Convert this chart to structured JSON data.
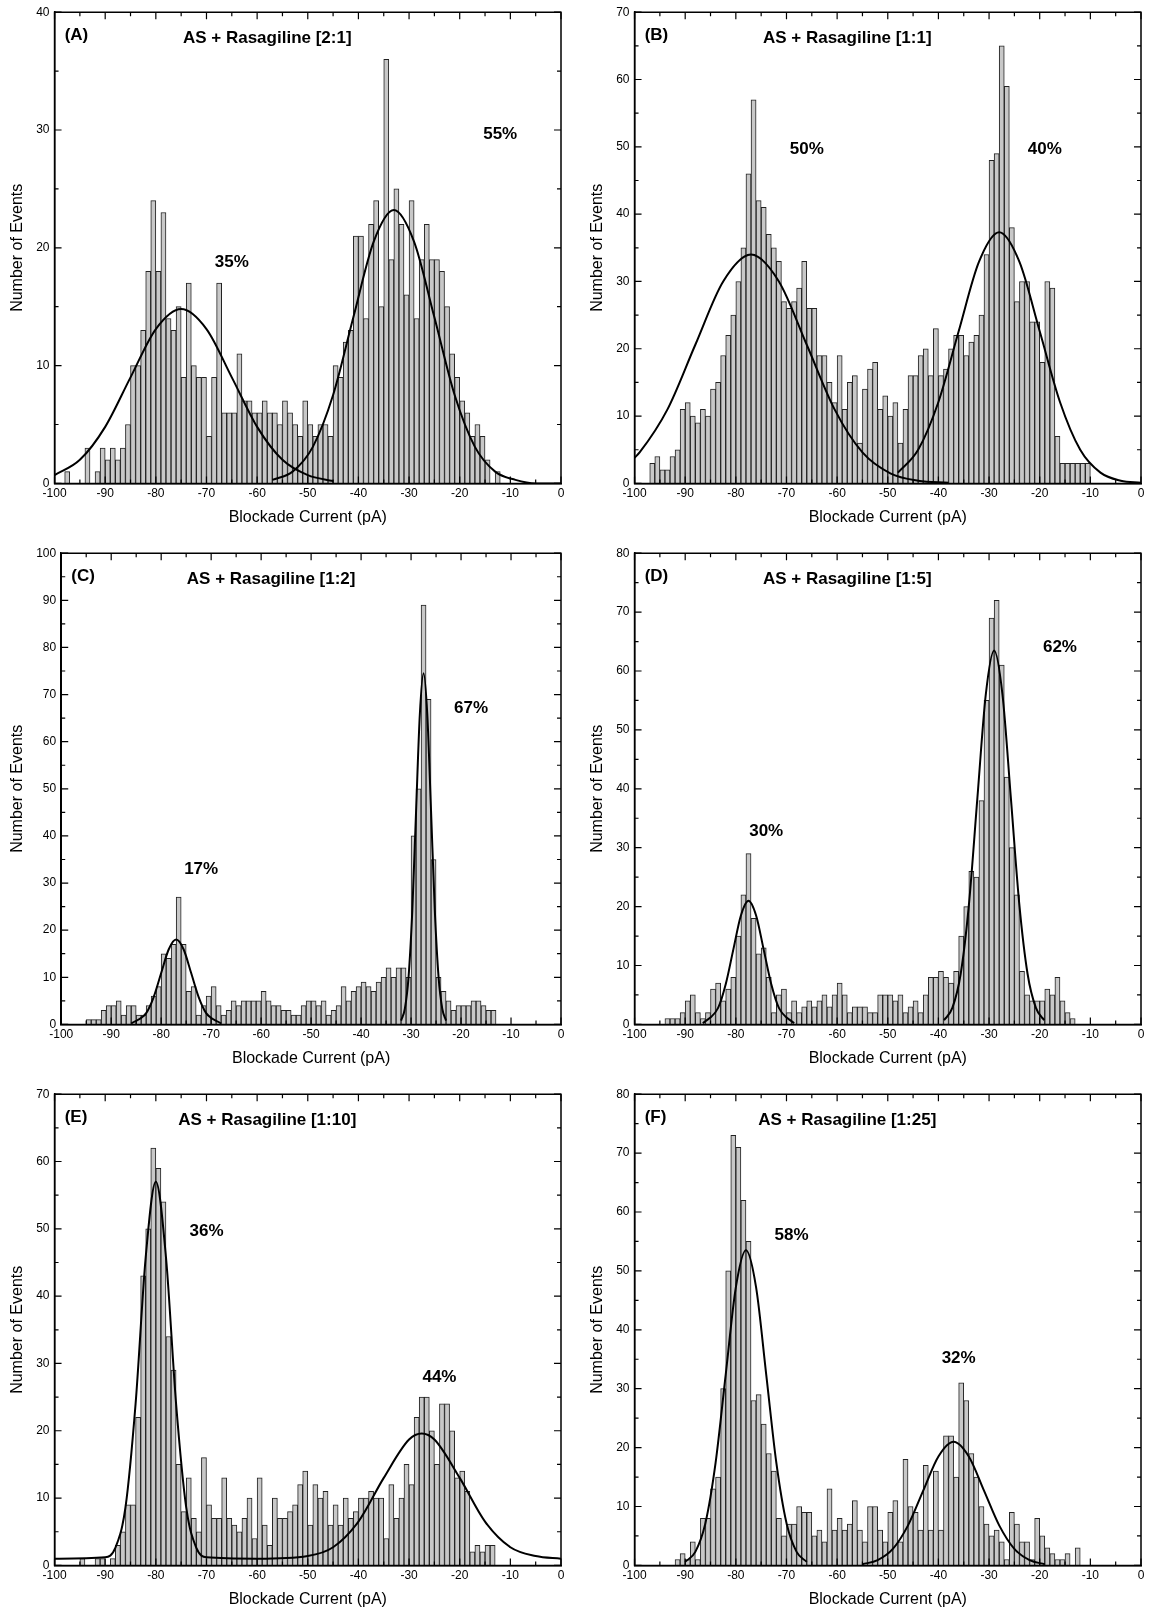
{
  "chart_data": [
    {
      "type": "histogram",
      "title": "AS + Rasagiline [2:1]",
      "xlabel": "Blockade Current (pA)",
      "ylabel": "Number of Events",
      "color": "#c8c8c8",
      "bins": [
        -98,
        -97,
        -96,
        -95,
        -94,
        -93,
        -92,
        -91,
        -90,
        -89,
        -88,
        -87,
        -86,
        -85,
        -84,
        -83,
        -82,
        -81,
        -80,
        -79,
        -78,
        -77,
        -76,
        -75,
        -74,
        -73,
        -72,
        -71,
        -70,
        -69,
        -68,
        -67,
        -66,
        -65,
        -64,
        -63,
        -62,
        -61,
        -60,
        -59,
        -58,
        -57,
        -56,
        -55,
        -54,
        -53,
        -52,
        -51,
        -50,
        -49,
        -48,
        -47,
        -46,
        -45,
        -44,
        -43,
        -42,
        -41,
        -40,
        -39,
        -38,
        -37,
        -36,
        -35,
        -34,
        -33,
        -32,
        -31,
        -30,
        -29,
        -28,
        -27,
        -26,
        -25,
        -24,
        -23,
        -22,
        -21,
        -20,
        -19,
        -18,
        -17,
        -16,
        -15,
        -14,
        -13,
        -12
      ],
      "values": [
        1,
        0,
        0,
        0,
        3,
        0,
        1,
        3,
        2,
        3,
        2,
        3,
        5,
        10,
        10,
        13,
        18,
        24,
        18,
        23,
        14,
        13,
        15,
        9,
        17,
        10,
        9,
        9,
        4,
        9,
        17,
        6,
        6,
        6,
        11,
        7,
        7,
        6,
        6,
        7,
        6,
        6,
        5,
        7,
        6,
        5,
        4,
        7,
        5,
        4,
        5,
        5,
        4,
        10,
        9,
        12,
        13,
        21,
        21,
        14,
        22,
        24,
        15,
        36,
        19,
        25,
        22,
        16,
        24,
        14,
        19,
        22,
        19,
        19,
        18,
        15,
        11,
        9,
        7,
        6,
        4,
        5,
        4,
        2,
        0,
        1
      ],
      "series": [
        {
          "type": "line",
          "color": "#000000",
          "x": [
            -100,
            -95,
            -90,
            -85,
            -80,
            -75,
            -70,
            -65,
            -60,
            -55,
            -50,
            -45
          ],
          "values": [
            0.7,
            2.0,
            4.8,
            9.0,
            13.1,
            14.8,
            13.1,
            9.0,
            4.8,
            2.0,
            0.7,
            0.2
          ]
        },
        {
          "type": "line",
          "color": "#000000",
          "x": [
            -57,
            -53,
            -49,
            -45,
            -41,
            -37,
            -33,
            -29,
            -25,
            -21,
            -17,
            -13,
            -9,
            -5,
            0
          ],
          "values": [
            0.3,
            1.0,
            3.1,
            7.5,
            14.1,
            20.5,
            23.2,
            20.5,
            14.1,
            7.5,
            3.1,
            1.0,
            0.3,
            0,
            0
          ]
        }
      ],
      "xlim": [
        -100,
        0
      ],
      "xticks": [
        -100,
        {
          "value": -95,
          "label": null
        },
        -90,
        {
          "value": -85,
          "label": null
        },
        -80,
        {
          "value": -75,
          "label": null
        },
        -70,
        {
          "value": -65,
          "label": null
        },
        -60,
        {
          "value": -55,
          "label": null
        },
        -50,
        {
          "value": -45,
          "label": null
        },
        -40,
        {
          "value": -35,
          "label": null
        },
        -30,
        {
          "value": -25,
          "label": null
        },
        -20,
        {
          "value": -15,
          "label": null
        },
        -10,
        {
          "value": -5,
          "label": null
        },
        0
      ],
      "ylim": [
        0,
        40
      ],
      "yticks": [
        0,
        {
          "value": 5,
          "label": null
        },
        10,
        {
          "value": 15,
          "label": null
        },
        20,
        {
          "value": 25,
          "label": null
        },
        30,
        {
          "value": 35,
          "label": null
        },
        40
      ],
      "marker": "none",
      "annotations": [
        "(A)",
        "35%",
        "55%"
      ]
    },
    {
      "type": "histogram",
      "title": "AS + Rasagiline [1:1]",
      "xlabel": "Blockade Current (pA)",
      "ylabel": "Number of Events",
      "color": "#c8c8c8",
      "bins": [
        -97,
        -96,
        -95,
        -94,
        -93,
        -92,
        -91,
        -90,
        -89,
        -88,
        -87,
        -86,
        -85,
        -84,
        -83,
        -82,
        -81,
        -80,
        -79,
        -78,
        -77,
        -76,
        -75,
        -74,
        -73,
        -72,
        -71,
        -70,
        -69,
        -68,
        -67,
        -66,
        -65,
        -64,
        -63,
        -62,
        -61,
        -60,
        -59,
        -58,
        -57,
        -56,
        -55,
        -54,
        -53,
        -52,
        -51,
        -50,
        -49,
        -48,
        -47,
        -46,
        -45,
        -44,
        -43,
        -42,
        -41,
        -40,
        -39,
        -38,
        -37,
        -36,
        -35,
        -34,
        -33,
        -32,
        -31,
        -30,
        -29,
        -28,
        -27,
        -26,
        -25,
        -24,
        -23,
        -22,
        -21,
        -20,
        -19,
        -18,
        -17,
        -16,
        -15,
        -14,
        -13,
        -12,
        -11,
        -10
      ],
      "values": [
        3,
        4,
        2,
        2,
        4,
        5,
        11,
        12,
        10,
        9,
        11,
        10,
        14,
        15,
        19,
        22,
        25,
        30,
        35,
        46,
        57,
        42,
        41,
        37,
        35,
        33,
        27,
        26,
        27,
        29,
        33,
        26,
        26,
        19,
        19,
        15,
        12,
        19,
        11,
        15,
        16,
        6,
        14,
        17,
        18,
        11,
        13,
        10,
        12,
        6,
        11,
        16,
        16,
        19,
        20,
        16,
        23,
        16,
        17,
        20,
        22,
        22,
        19,
        21,
        22,
        25,
        34,
        48,
        49,
        65,
        59,
        38,
        27,
        30,
        30,
        24,
        24,
        18,
        30,
        29,
        7,
        3,
        3,
        3,
        3,
        3,
        3
      ],
      "series": [
        {
          "type": "line",
          "color": "#000000",
          "x": [
            -100,
            -99,
            -93.5,
            -88,
            -82.5,
            -77,
            -71.5,
            -66,
            -60.5,
            -55,
            -49.5,
            -44,
            -38
          ],
          "values": [
            3.8,
            4.6,
            11.0,
            20.6,
            30.0,
            34,
            30.0,
            20.6,
            11.0,
            4.6,
            1.5,
            0.4,
            0.1
          ]
        },
        {
          "type": "line",
          "color": "#000000",
          "x": [
            -48,
            -44,
            -40,
            -36,
            -32,
            -28,
            -24,
            -20,
            -16,
            -12,
            -8,
            -4,
            0
          ],
          "values": [
            1.6,
            5.0,
            12.1,
            22.6,
            32.9,
            37.3,
            32.9,
            22.6,
            12.1,
            5.0,
            1.6,
            0.4,
            0.1
          ]
        }
      ],
      "xlim": [
        -100,
        0
      ],
      "xticks": [
        -100,
        {
          "value": -95,
          "label": null
        },
        -90,
        {
          "value": -85,
          "label": null
        },
        -80,
        {
          "value": -75,
          "label": null
        },
        -70,
        {
          "value": -65,
          "label": null
        },
        -60,
        {
          "value": -55,
          "label": null
        },
        -50,
        {
          "value": -45,
          "label": null
        },
        -40,
        {
          "value": -35,
          "label": null
        },
        -30,
        {
          "value": -25,
          "label": null
        },
        -20,
        {
          "value": -15,
          "label": null
        },
        -10,
        {
          "value": -5,
          "label": null
        },
        0
      ],
      "ylim": [
        0,
        70
      ],
      "yticks": [
        0,
        {
          "value": 5,
          "label": null
        },
        10,
        {
          "value": 15,
          "label": null
        },
        20,
        {
          "value": 25,
          "label": null
        },
        30,
        {
          "value": 35,
          "label": null
        },
        40,
        {
          "value": 45,
          "label": null
        },
        50,
        {
          "value": 55,
          "label": null
        },
        60,
        {
          "value": 65,
          "label": null
        },
        70
      ],
      "marker": "none",
      "annotations": [
        "(B)",
        "50%",
        "40%"
      ]
    },
    {
      "type": "histogram",
      "title": "AS + Rasagiline [1:2]",
      "xlabel": "Blockade Current (pA)",
      "ylabel": "Number of Events",
      "color": "#c8c8c8",
      "bins": [
        -95,
        -94,
        -93,
        -92,
        -91,
        -90,
        -89,
        -88,
        -87,
        -86,
        -85,
        -84,
        -83,
        -82,
        -81,
        -80,
        -79,
        -78,
        -77,
        -76,
        -75,
        -74,
        -73,
        -72,
        -71,
        -70,
        -69,
        -68,
        -67,
        -66,
        -65,
        -64,
        -63,
        -62,
        -61,
        -60,
        -59,
        -58,
        -57,
        -56,
        -55,
        -54,
        -53,
        -52,
        -51,
        -50,
        -49,
        -48,
        -47,
        -46,
        -45,
        -44,
        -43,
        -42,
        -41,
        -40,
        -39,
        -38,
        -37,
        -36,
        -35,
        -34,
        -33,
        -32,
        -31,
        -30,
        -29,
        -28,
        -27,
        -26,
        -25,
        -24,
        -23,
        -22,
        -21,
        -20,
        -19,
        -18,
        -17,
        -16,
        -15,
        -14,
        -13
      ],
      "values": [
        1,
        1,
        1,
        3,
        4,
        4,
        5,
        2,
        4,
        4,
        2,
        2,
        4,
        6,
        8,
        15,
        14,
        17,
        27,
        17,
        7,
        8,
        2,
        4,
        6,
        8,
        4,
        2,
        3,
        5,
        4,
        5,
        5,
        5,
        5,
        7,
        5,
        4,
        4,
        3,
        3,
        2,
        2,
        4,
        5,
        5,
        4,
        5,
        2,
        3,
        4,
        8,
        5,
        7,
        8,
        9,
        8,
        7,
        9,
        10,
        12,
        10,
        12,
        12,
        10,
        40,
        50,
        89,
        69,
        35,
        10,
        7,
        5,
        3,
        4,
        4,
        4,
        5,
        5,
        4,
        3,
        3
      ],
      "series": [
        {
          "type": "line",
          "color": "#000000",
          "x": [
            -86,
            -83,
            -81.5,
            -80,
            -78.5,
            -77,
            -75.5,
            -74,
            -72.5,
            -71,
            -68
          ],
          "values": [
            0.2,
            2.4,
            5.8,
            10.9,
            15.9,
            18,
            15.9,
            10.9,
            5.8,
            2.4,
            0.2
          ]
        },
        {
          "type": "line",
          "color": "#000000",
          "x": [
            -32,
            -31.25,
            -30.5,
            -29.75,
            -29,
            -28.25,
            -27.5,
            -26.75,
            -26,
            -25.25,
            -24.5,
            -23.75,
            -23
          ],
          "values": [
            0.8,
            3.3,
            10.1,
            24.2,
            45.2,
            65.7,
            74.5,
            65.7,
            45.2,
            24.2,
            10.1,
            3.3,
            0.8
          ]
        }
      ],
      "xlim": [
        -100,
        0
      ],
      "xticks": [
        -100,
        {
          "value": -95,
          "label": null
        },
        -90,
        {
          "value": -85,
          "label": null
        },
        -80,
        {
          "value": -75,
          "label": null
        },
        -70,
        {
          "value": -65,
          "label": null
        },
        -60,
        {
          "value": -55,
          "label": null
        },
        -50,
        {
          "value": -45,
          "label": null
        },
        -40,
        {
          "value": -35,
          "label": null
        },
        -30,
        {
          "value": -25,
          "label": null
        },
        -20,
        {
          "value": -15,
          "label": null
        },
        -10,
        {
          "value": -5,
          "label": null
        },
        0
      ],
      "ylim": [
        0,
        100
      ],
      "yticks": [
        0,
        {
          "value": 5,
          "label": null
        },
        10,
        {
          "value": 15,
          "label": null
        },
        20,
        {
          "value": 25,
          "label": null
        },
        30,
        {
          "value": 35,
          "label": null
        },
        40,
        {
          "value": 45,
          "label": null
        },
        50,
        {
          "value": 55,
          "label": null
        },
        60,
        {
          "value": 65,
          "label": null
        },
        70,
        {
          "value": 75,
          "label": null
        },
        80,
        {
          "value": 85,
          "label": null
        },
        90,
        {
          "value": 95,
          "label": null
        },
        100
      ],
      "marker": "none",
      "annotations": [
        "(C)",
        "17%",
        "67%"
      ]
    },
    {
      "type": "histogram",
      "title": "AS + Rasagiline [1:5]",
      "xlabel": "Blockade Current (pA)",
      "ylabel": "Number of Events",
      "color": "#c8c8c8",
      "bins": [
        -94,
        -93,
        -92,
        -91,
        -90,
        -89,
        -88,
        -87,
        -86,
        -85,
        -84,
        -83,
        -82,
        -81,
        -80,
        -79,
        -78,
        -77,
        -76,
        -75,
        -74,
        -73,
        -72,
        -71,
        -70,
        -69,
        -68,
        -67,
        -66,
        -65,
        -64,
        -63,
        -62,
        -61,
        -60,
        -59,
        -58,
        -57,
        -56,
        -55,
        -54,
        -53,
        -52,
        -51,
        -50,
        -49,
        -48,
        -47,
        -46,
        -45,
        -44,
        -43,
        -42,
        -41,
        -40,
        -39,
        -38,
        -37,
        -36,
        -35,
        -34,
        -33,
        -32,
        -31,
        -30,
        -29,
        -28,
        -27,
        -26,
        -25,
        -24,
        -23,
        -22,
        -21,
        -20,
        -19,
        -18,
        -17,
        -16,
        -15,
        -14,
        -13
      ],
      "values": [
        1,
        1,
        1,
        2,
        4,
        5,
        2,
        1,
        2,
        6,
        7,
        4,
        6,
        8,
        15,
        22,
        29,
        18,
        12,
        13,
        8,
        2,
        5,
        6,
        2,
        4,
        2,
        3,
        4,
        3,
        4,
        5,
        3,
        5,
        7,
        5,
        2,
        3,
        3,
        3,
        2,
        2,
        5,
        5,
        5,
        4,
        5,
        2,
        3,
        4,
        2,
        5,
        8,
        8,
        9,
        8,
        7,
        9,
        15,
        20,
        26,
        25,
        38,
        55,
        69,
        72,
        61,
        42,
        30,
        22,
        9,
        5,
        4,
        4,
        4,
        6,
        5,
        8,
        4,
        2,
        1
      ],
      "series": [
        {
          "type": "line",
          "color": "#000000",
          "x": [
            -86.5,
            -83.5,
            -82,
            -80.5,
            -79,
            -77.5,
            -76,
            -74.5,
            -73,
            -71.5,
            -68.5
          ],
          "values": [
            0.2,
            2.8,
            6.8,
            12.7,
            18.5,
            21,
            18.5,
            12.7,
            6.8,
            2.8,
            0.2
          ]
        },
        {
          "type": "line",
          "color": "#000000",
          "x": [
            -38.9,
            -37.25,
            -35.6,
            -33.95,
            -32.3,
            -30.65,
            -29,
            -27.35,
            -25.7,
            -24.05,
            -22.4,
            -20.75,
            -19.1
          ],
          "values": [
            0.7,
            2.8,
            8.6,
            20.6,
            38.5,
            56,
            63.5,
            56,
            38.5,
            20.6,
            8.6,
            2.8,
            0.7
          ]
        }
      ],
      "xlim": [
        -100,
        0
      ],
      "xticks": [
        -100,
        {
          "value": -95,
          "label": null
        },
        -90,
        {
          "value": -85,
          "label": null
        },
        -80,
        {
          "value": -75,
          "label": null
        },
        -70,
        {
          "value": -65,
          "label": null
        },
        -60,
        {
          "value": -55,
          "label": null
        },
        -50,
        {
          "value": -45,
          "label": null
        },
        -40,
        {
          "value": -35,
          "label": null
        },
        -30,
        {
          "value": -25,
          "label": null
        },
        -20,
        {
          "value": -15,
          "label": null
        },
        -10,
        {
          "value": -5,
          "label": null
        },
        0
      ],
      "ylim": [
        0,
        80
      ],
      "yticks": [
        0,
        {
          "value": 5,
          "label": null
        },
        10,
        {
          "value": 15,
          "label": null
        },
        20,
        {
          "value": 25,
          "label": null
        },
        30,
        {
          "value": 35,
          "label": null
        },
        40,
        {
          "value": 45,
          "label": null
        },
        50,
        {
          "value": 55,
          "label": null
        },
        60,
        {
          "value": 65,
          "label": null
        },
        70,
        {
          "value": 75,
          "label": null
        },
        80
      ],
      "marker": "none",
      "annotations": [
        "(D)",
        "30%",
        "62%"
      ]
    },
    {
      "type": "histogram",
      "title": "AS + Rasagiline [1:10]",
      "xlabel": "Blockade Current (pA)",
      "ylabel": "Number of Events",
      "color": "#c8c8c8",
      "bins": [
        -95,
        -94,
        -93,
        -92,
        -91,
        -90,
        -89,
        -88,
        -87,
        -86,
        -85,
        -84,
        -83,
        -82,
        -81,
        -80,
        -79,
        -78,
        -77,
        -76,
        -75,
        -74,
        -73,
        -72,
        -71,
        -70,
        -69,
        -68,
        -67,
        -66,
        -65,
        -64,
        -63,
        -62,
        -61,
        -60,
        -59,
        -58,
        -57,
        -56,
        -55,
        -54,
        -53,
        -52,
        -51,
        -50,
        -49,
        -48,
        -47,
        -46,
        -45,
        -44,
        -43,
        -42,
        -41,
        -40,
        -39,
        -38,
        -37,
        -36,
        -35,
        -34,
        -33,
        -32,
        -31,
        -30,
        -29,
        -28,
        -27,
        -26,
        -25,
        -24,
        -23,
        -22,
        -21,
        -20,
        -19,
        -18,
        -17,
        -16,
        -15,
        -14,
        -13
      ],
      "values": [
        1,
        0,
        0,
        1,
        1,
        0,
        1,
        3,
        5,
        9,
        9,
        22,
        43,
        50,
        62,
        59,
        54,
        34,
        29,
        15,
        8,
        13,
        7,
        5,
        16,
        9,
        7,
        7,
        13,
        7,
        6,
        5,
        7,
        10,
        4,
        13,
        6,
        3,
        10,
        7,
        7,
        8,
        9,
        12,
        14,
        6,
        12,
        10,
        11,
        6,
        9,
        6,
        10,
        7,
        8,
        10,
        10,
        11,
        10,
        10,
        4,
        12,
        7,
        10,
        15,
        12,
        22,
        25,
        25,
        20,
        15,
        24,
        24,
        20,
        13,
        14,
        11,
        2,
        3,
        2,
        3,
        3
      ],
      "series": [
        {
          "type": "line",
          "color": "#000000",
          "x": [
            -100,
            -90,
            -88,
            -86,
            -84,
            -82,
            -80,
            -78,
            -76,
            -74,
            -72,
            -70,
            -60,
            -50,
            -45,
            -40,
            -35,
            -30,
            -27.5,
            -25,
            -20,
            -15,
            -10,
            -5,
            0
          ],
          "values": [
            1,
            1.2,
            2.6,
            8.6,
            24,
            45.8,
            57,
            45.8,
            24,
            8.6,
            2.6,
            1.2,
            1,
            1.4,
            2.7,
            6.5,
            13,
            18.7,
            19.6,
            18.7,
            13,
            6.5,
            2.7,
            1.4,
            1
          ]
        }
      ],
      "xlim": [
        -100,
        0
      ],
      "xticks": [
        -100,
        {
          "value": -95,
          "label": null
        },
        -90,
        {
          "value": -85,
          "label": null
        },
        -80,
        {
          "value": -75,
          "label": null
        },
        -70,
        {
          "value": -65,
          "label": null
        },
        -60,
        {
          "value": -55,
          "label": null
        },
        -50,
        {
          "value": -45,
          "label": null
        },
        -40,
        {
          "value": -35,
          "label": null
        },
        -30,
        {
          "value": -25,
          "label": null
        },
        -20,
        {
          "value": -15,
          "label": null
        },
        -10,
        {
          "value": -5,
          "label": null
        },
        0
      ],
      "ylim": [
        0,
        70
      ],
      "yticks": [
        0,
        {
          "value": 5,
          "label": null
        },
        10,
        {
          "value": 15,
          "label": null
        },
        20,
        {
          "value": 25,
          "label": null
        },
        30,
        {
          "value": 35,
          "label": null
        },
        40,
        {
          "value": 45,
          "label": null
        },
        50,
        {
          "value": 55,
          "label": null
        },
        60,
        {
          "value": 65,
          "label": null
        },
        70
      ],
      "marker": "none",
      "annotations": [
        "(E)",
        "36%",
        "44%"
      ]
    },
    {
      "type": "histogram",
      "title": "AS + Rasagiline [1:25]",
      "xlabel": "Blockade Current (pA)",
      "ylabel": "Number of Events",
      "color": "#c8c8c8",
      "bins": [
        -92,
        -91,
        -90,
        -89,
        -88,
        -87,
        -86,
        -85,
        -84,
        -83,
        -82,
        -81,
        -80,
        -79,
        -78,
        -77,
        -76,
        -75,
        -74,
        -73,
        -72,
        -71,
        -70,
        -69,
        -68,
        -67,
        -66,
        -65,
        -64,
        -63,
        -62,
        -61,
        -60,
        -59,
        -58,
        -57,
        -56,
        -55,
        -54,
        -53,
        -52,
        -51,
        -50,
        -49,
        -48,
        -47,
        -46,
        -45,
        -44,
        -43,
        -42,
        -41,
        -40,
        -39,
        -38,
        -37,
        -36,
        -35,
        -34,
        -33,
        -32,
        -31,
        -30,
        -29,
        -28,
        -27,
        -26,
        -25,
        -24,
        -23,
        -22,
        -21,
        -20,
        -19,
        -18,
        -17,
        -16,
        -15,
        -14,
        -13,
        -12
      ],
      "values": [
        1,
        2,
        1,
        4,
        1,
        8,
        8,
        13,
        15,
        30,
        50,
        73,
        71,
        62,
        55,
        28,
        29,
        24,
        19,
        16,
        8,
        5,
        7,
        7,
        10,
        9,
        9,
        5,
        6,
        4,
        13,
        6,
        8,
        6,
        7,
        11,
        6,
        4,
        10,
        10,
        6,
        4,
        9,
        11,
        4,
        18,
        10,
        9,
        6,
        17,
        6,
        16,
        6,
        22,
        22,
        15,
        31,
        28,
        19,
        15,
        10,
        7,
        5,
        6,
        4,
        1,
        9,
        7,
        4,
        4,
        1,
        8,
        5,
        3,
        2,
        1,
        1,
        2,
        0,
        3
      ],
      "series": [
        {
          "type": "line",
          "color": "#000000",
          "x": [
            -90,
            -88,
            -86,
            -84,
            -82,
            -80,
            -78,
            -76,
            -74,
            -72,
            -70,
            -68,
            -66
          ],
          "values": [
            0.6,
            2.3,
            7.2,
            17.4,
            32.4,
            47.2,
            53.5,
            47.2,
            32.4,
            17.4,
            7.2,
            2.3,
            0.6
          ]
        },
        {
          "type": "line",
          "color": "#000000",
          "x": [
            -55,
            -52,
            -49,
            -46,
            -43,
            -40,
            -37,
            -34,
            -31,
            -28,
            -25,
            -22,
            -19
          ],
          "values": [
            0.2,
            0.9,
            2.8,
            6.8,
            12.7,
            18.5,
            21,
            18.5,
            12.7,
            6.8,
            2.8,
            0.9,
            0.2
          ]
        }
      ],
      "xlim": [
        -100,
        0
      ],
      "xticks": [
        -100,
        {
          "value": -95,
          "label": null
        },
        -90,
        {
          "value": -85,
          "label": null
        },
        -80,
        {
          "value": -75,
          "label": null
        },
        -70,
        {
          "value": -65,
          "label": null
        },
        -60,
        {
          "value": -55,
          "label": null
        },
        -50,
        {
          "value": -45,
          "label": null
        },
        -40,
        {
          "value": -35,
          "label": null
        },
        -30,
        {
          "value": -25,
          "label": null
        },
        -20,
        {
          "value": -15,
          "label": null
        },
        -10,
        {
          "value": -5,
          "label": null
        },
        0
      ],
      "ylim": [
        0,
        80
      ],
      "yticks": [
        0,
        {
          "value": 5,
          "label": null
        },
        10,
        {
          "value": 15,
          "label": null
        },
        20,
        {
          "value": 25,
          "label": null
        },
        30,
        {
          "value": 35,
          "label": null
        },
        40,
        {
          "value": 45,
          "label": null
        },
        50,
        {
          "value": 55,
          "label": null
        },
        60,
        {
          "value": 65,
          "label": null
        },
        70,
        {
          "value": 75,
          "label": null
        },
        80
      ],
      "marker": "none",
      "annotations": [
        "(F)",
        "58%",
        "32%"
      ]
    }
  ]
}
